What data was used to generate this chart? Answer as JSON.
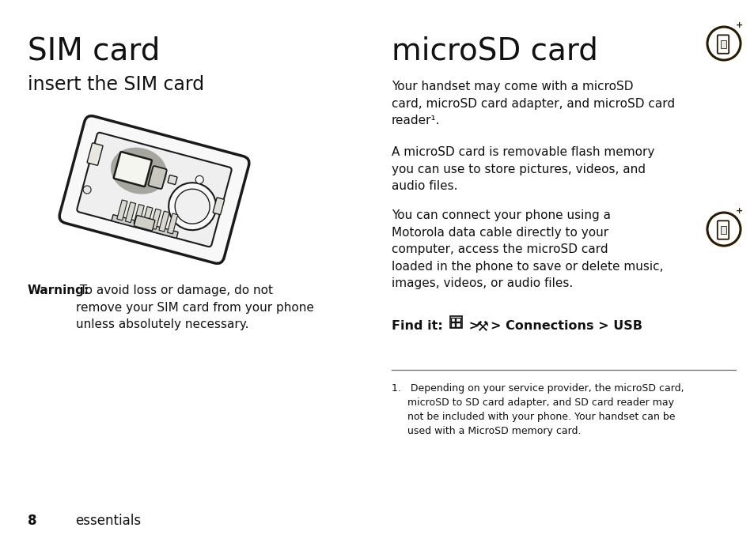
{
  "bg_color": "#ffffff",
  "left_title": "SIM card",
  "left_subtitle": "insert the SIM card",
  "warning_bold": "Warning:",
  "warning_rest": " To avoid loss or damage, do not\nremove your SIM card from your phone\nunless absolutely necessary.",
  "right_title": "microSD card",
  "right_para1": "Your handset may come with a microSD\ncard, microSD card adapter, and microSD card\nreader¹.",
  "right_para2": "A microSD card is removable flash memory\nyou can use to store pictures, videos, and\naudio files.",
  "right_para3": "You can connect your phone using a\nMotorola data cable directly to your\ncomputer, access the microSD card\nloaded in the phone to save or delete music,\nimages, videos, or audio files.",
  "find_it_bold": "Find it:",
  "footnote": "1.   Depending on your service provider, the microSD card,\n     microSD to SD card adapter, and SD card reader may\n     not be included with your phone. Your handset can be\n     used with a MicroSD memory card.",
  "page_number": "8",
  "page_label": "essentials",
  "text_color": "#111111",
  "icon_color": "#2a1a00",
  "line_color": "#888888",
  "phone_edge": "#1a1a1a",
  "grey_fill": "#9a9890"
}
